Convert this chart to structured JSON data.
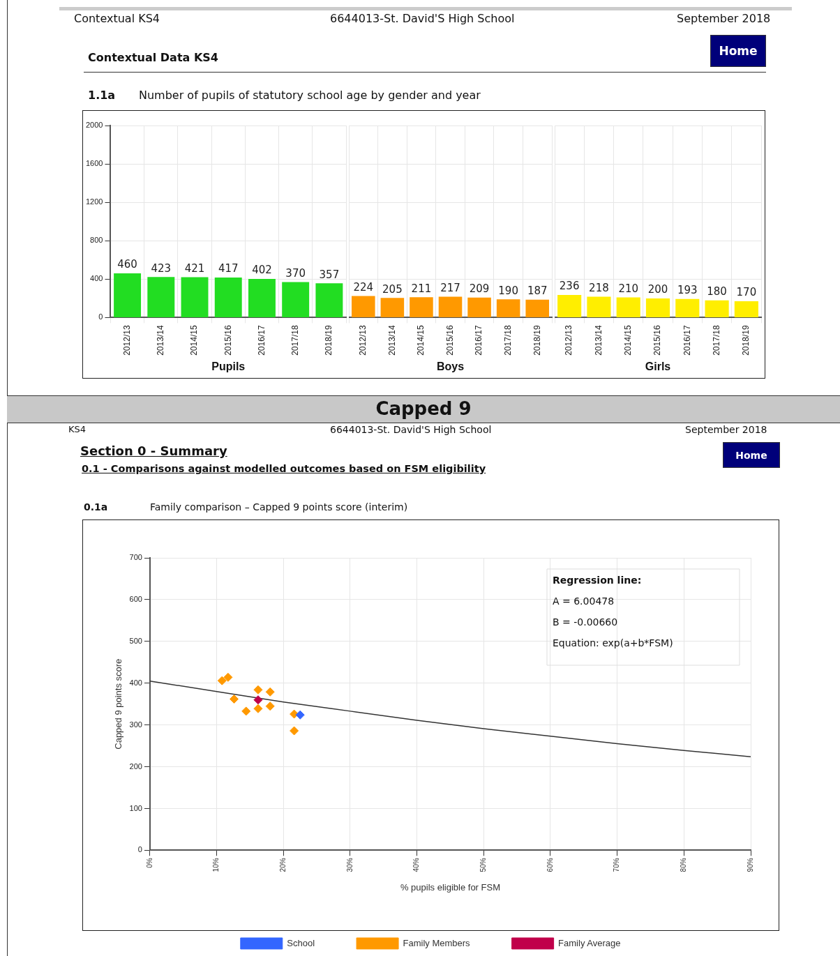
{
  "chart_data": [
    {
      "type": "bar",
      "title": "Number of pupils of statutory school age by gender and year",
      "xlabel": "Pupils",
      "categories": [
        "2012/13",
        "2013/14",
        "2014/15",
        "2015/16",
        "2016/17",
        "2017/18",
        "2018/19"
      ],
      "values": [
        460,
        423,
        421,
        417,
        402,
        370,
        357
      ],
      "color": "#22dd22",
      "ylim": [
        0,
        2000
      ],
      "yticks": [
        0,
        400,
        800,
        1200,
        1600,
        2000
      ],
      "grid": true,
      "data_labels": true,
      "annotations": [
        "Contextual KS4",
        "6644013-St. David'S High School",
        "September 2018",
        "Contextual Data KS4",
        "Home",
        "1.1a"
      ]
    },
    {
      "type": "bar",
      "xlabel": "Boys",
      "categories": [
        "2012/13",
        "2013/14",
        "2014/15",
        "2015/16",
        "2016/17",
        "2017/18",
        "2018/19"
      ],
      "values": [
        224,
        205,
        211,
        217,
        209,
        190,
        187
      ],
      "color": "#ff9900",
      "ylim": [
        0,
        2000
      ],
      "yticks": [
        0,
        400,
        800,
        1200,
        1600,
        2000
      ],
      "grid": true,
      "data_labels": true,
      "tick_labels": "x"
    },
    {
      "type": "bar",
      "xlabel": "Girls",
      "categories": [
        "2012/13",
        "2013/14",
        "2014/15",
        "2015/16",
        "2016/17",
        "2017/18",
        "2018/19"
      ],
      "values": [
        236,
        218,
        210,
        200,
        193,
        180,
        170
      ],
      "color": "#ffee00",
      "ylim": [
        0,
        2000
      ],
      "yticks": [
        0,
        400,
        800,
        1200,
        1600,
        2000
      ],
      "grid": true,
      "data_labels": true,
      "tick_labels": "x"
    },
    {
      "type": "scatter",
      "title": "Family comparison – Capped 9 points score (interim)",
      "xlabel": "% pupils eligible for FSM",
      "ylabel": "Capped 9 points score",
      "marker": "diamond",
      "grid": true,
      "legend": "bottom",
      "xlim": [
        0,
        90
      ],
      "xticks": [
        {
          "value": 0,
          "label": "0%"
        },
        {
          "value": 10,
          "label": "10%"
        },
        {
          "value": 20,
          "label": "20%"
        },
        {
          "value": 30,
          "label": "30%"
        },
        {
          "value": 40,
          "label": "40%"
        },
        {
          "value": 50,
          "label": "50%"
        },
        {
          "value": 60,
          "label": "60%"
        },
        {
          "value": 70,
          "label": "70%"
        },
        {
          "value": 80,
          "label": "80%"
        },
        {
          "value": 90,
          "label": "90%"
        }
      ],
      "ylim": [
        0,
        700
      ],
      "yticks": [
        0,
        100,
        200,
        300,
        400,
        500,
        600,
        700
      ],
      "series": [
        {
          "name": "School",
          "color": "#3366ff",
          "x": [
            22.5
          ],
          "values": [
            324
          ]
        },
        {
          "name": "Family Members",
          "color": "#ff9900",
          "x": [
            10.8,
            11.7,
            12.6,
            14.4,
            16.2,
            16.2,
            18.0,
            18.0,
            21.6,
            21.6
          ],
          "values": [
            406,
            414,
            362,
            333,
            384,
            339,
            379,
            345,
            326,
            286
          ]
        },
        {
          "name": "Family Average",
          "color": "#c0004a",
          "x": [
            16.2
          ],
          "values": [
            360
          ]
        },
        {
          "type": "line",
          "marker": "none",
          "color": "#333333",
          "x": [
            0,
            10,
            20,
            30,
            40,
            50,
            60,
            70,
            80,
            90
          ],
          "values": [
            405,
            380,
            355,
            333,
            311,
            291,
            273,
            255,
            239,
            224
          ]
        }
      ],
      "annotations": [
        "Capped 9",
        "KS4",
        "6644013-St. David'S High School",
        "September 2018",
        "Section 0 - Summary",
        "Home",
        "0.1 - Comparisons against modelled outcomes based on FSM eligibility",
        "0.1a",
        "Regression line:",
        "A = 6.00478",
        "B = -0.00660",
        "Equation: exp(a+b*FSM)"
      ]
    }
  ]
}
